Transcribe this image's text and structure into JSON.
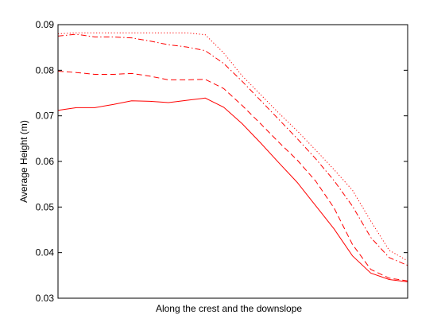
{
  "chart_data": {
    "type": "line",
    "title": "",
    "xlabel": "Along the crest and the downslope",
    "ylabel": "Average Height (m)",
    "ylim": [
      0.03,
      0.09
    ],
    "yticks": [
      "0.03",
      "0.04",
      "0.05",
      "0.06",
      "0.07",
      "0.08",
      "0.09"
    ],
    "xlim": [
      0,
      19
    ],
    "xticks_shown": false,
    "grid": false,
    "legend": "none",
    "line_color": "#ff0000",
    "x": [
      0,
      1,
      2,
      3,
      4,
      5,
      6,
      7,
      8,
      9,
      10,
      11,
      12,
      13,
      14,
      15,
      16,
      17,
      18,
      19
    ],
    "series": [
      {
        "style": "solid",
        "values": [
          0.0712,
          0.0718,
          0.0718,
          0.0725,
          0.0733,
          0.0732,
          0.0729,
          0.0734,
          0.0739,
          0.0719,
          0.0683,
          0.0641,
          0.0597,
          0.0554,
          0.0503,
          0.0452,
          0.0393,
          0.0355,
          0.0341,
          0.0336
        ]
      },
      {
        "style": "dashed",
        "values": [
          0.0798,
          0.0795,
          0.0791,
          0.0791,
          0.0793,
          0.0787,
          0.0779,
          0.0779,
          0.078,
          0.076,
          0.0723,
          0.0683,
          0.0642,
          0.0603,
          0.0557,
          0.0498,
          0.0418,
          0.0363,
          0.0344,
          0.0338
        ]
      },
      {
        "style": "dash-dot",
        "values": [
          0.0875,
          0.0879,
          0.0873,
          0.0873,
          0.0871,
          0.0864,
          0.0856,
          0.0851,
          0.0843,
          0.0815,
          0.0776,
          0.0734,
          0.0692,
          0.065,
          0.0606,
          0.0558,
          0.0502,
          0.0433,
          0.0389,
          0.0372
        ]
      },
      {
        "style": "dotted",
        "values": [
          0.088,
          0.0882,
          0.0882,
          0.0882,
          0.0882,
          0.0882,
          0.0882,
          0.0882,
          0.0878,
          0.0838,
          0.0788,
          0.0747,
          0.0706,
          0.0667,
          0.0625,
          0.0582,
          0.0537,
          0.0469,
          0.0405,
          0.0382
        ]
      }
    ]
  }
}
